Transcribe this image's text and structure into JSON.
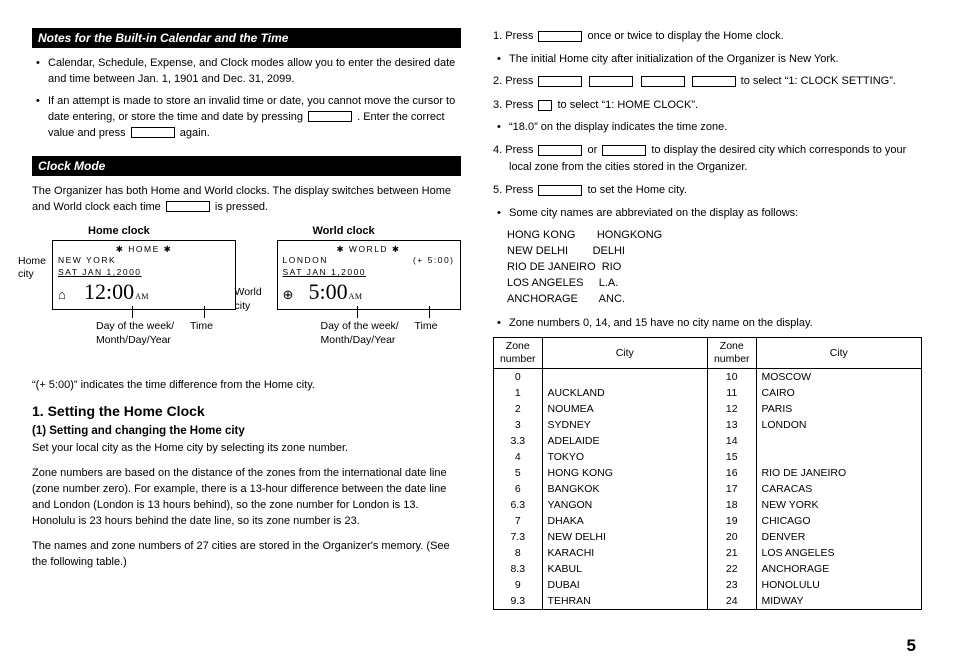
{
  "left": {
    "notes_title": "Notes for the Built-in Calendar and the Time",
    "notes": [
      "Calendar, Schedule, Expense, and Clock modes allow you to enter the desired date and time between Jan. 1, 1901 and Dec. 31, 2099.",
      "If an attempt is made to store an invalid time or date, you cannot move the cursor to date entering, or store the time and date by pressing ▭ .  Enter the correct value and press ▭ again."
    ],
    "clockmode_title": "Clock Mode",
    "clockmode_intro_a": "The Organizer has both Home and World clocks. The display switches between Home and World clock each time ",
    "clockmode_intro_b": " is pressed.",
    "home_label": "Home clock",
    "world_label": "World clock",
    "home_city_label": "Home\ncity",
    "world_city_label": "World\ncity",
    "time_label": "Time",
    "dow_label": "Day of the week/\nMonth/Day/Year",
    "lcd_home": {
      "r1": "✱ HOME ✱",
      "r2a": "NEW YORK",
      "r3": "SAT JAN  1,2000",
      "time": "12:00",
      "ampm": "AM"
    },
    "lcd_world": {
      "r1": "✱ WORLD ✱",
      "r2a": "LONDON",
      "r2b": "(+ 5:00)",
      "r3": "SAT JAN  1,2000",
      "time": "5:00",
      "ampm": "AM"
    },
    "diffnote": "“(+ 5:00)” indicates the time difference from the Home city.",
    "h1": "1. Setting the Home Clock",
    "h1sub": "(1)  Setting and changing the Home city",
    "p1": "Set your local city as the Home city by selecting its zone number.",
    "p2": "Zone numbers are based on the distance of the zones from the international date line (zone number zero). For example, there is a 13-hour difference between the date line and London (London is 13 hours behind), so the zone number for London is 13. Honolulu is 23 hours behind the date line, so its zone number is 23.",
    "p3": "The names and zone numbers of 27 cities are stored in the Organizer's memory. (See the following table.)"
  },
  "right": {
    "steps": {
      "s1a": "1.  Press ",
      "s1b": " once or twice to display the Home clock.",
      "b1": "The initial Home city after initialization of the Organizer is New York.",
      "s2a": "2.  Press ",
      "s2b": " to select “1: CLOCK SETTING”.",
      "s3a": "3.  Press ",
      "s3b": " to select “1: HOME CLOCK”.",
      "b2": "“18.0” on the display indicates the time zone.",
      "s4a": "4.  Press ",
      "s4b": " or ",
      "s4c": " to display the desired city which corresponds to your local zone from the cities stored in the Organizer.",
      "s5a": "5.  Press ",
      "s5b": " to set the Home city.",
      "b3": "Some city names are abbreviated on the display as follows:"
    },
    "abbr": [
      "HONG KONG       HONGKONG",
      "NEW DELHI        DELHI",
      "RIO DE JANEIRO  RIO",
      "LOS ANGELES     L.A.",
      "ANCHORAGE       ANC."
    ],
    "b4": "Zone numbers 0, 14, and 15 have no city name on the display.",
    "th_zone": "Zone\nnumber",
    "th_city": "City",
    "zones_left": [
      [
        "0",
        ""
      ],
      [
        "1",
        "AUCKLAND"
      ],
      [
        "2",
        "NOUMEA"
      ],
      [
        "3",
        "SYDNEY"
      ],
      [
        "3.3",
        "ADELAIDE"
      ],
      [
        "4",
        "TOKYO"
      ],
      [
        "5",
        "HONG KONG"
      ],
      [
        "6",
        "BANGKOK"
      ],
      [
        "6.3",
        "YANGON"
      ],
      [
        "7",
        "DHAKA"
      ],
      [
        "7.3",
        "NEW DELHI"
      ],
      [
        "8",
        "KARACHI"
      ],
      [
        "8.3",
        "KABUL"
      ],
      [
        "9",
        "DUBAI"
      ],
      [
        "9.3",
        "TEHRAN"
      ]
    ],
    "zones_right": [
      [
        "10",
        "MOSCOW"
      ],
      [
        "11",
        "CAIRO"
      ],
      [
        "12",
        "PARIS"
      ],
      [
        "13",
        "LONDON"
      ],
      [
        "14",
        ""
      ],
      [
        "15",
        ""
      ],
      [
        "16",
        "RIO DE JANEIRO"
      ],
      [
        "17",
        "CARACAS"
      ],
      [
        "18",
        "NEW YORK"
      ],
      [
        "19",
        "CHICAGO"
      ],
      [
        "20",
        "DENVER"
      ],
      [
        "21",
        "LOS ANGELES"
      ],
      [
        "22",
        "ANCHORAGE"
      ],
      [
        "23",
        "HONOLULU"
      ],
      [
        "24",
        "MIDWAY"
      ]
    ]
  },
  "pagenum": "5"
}
